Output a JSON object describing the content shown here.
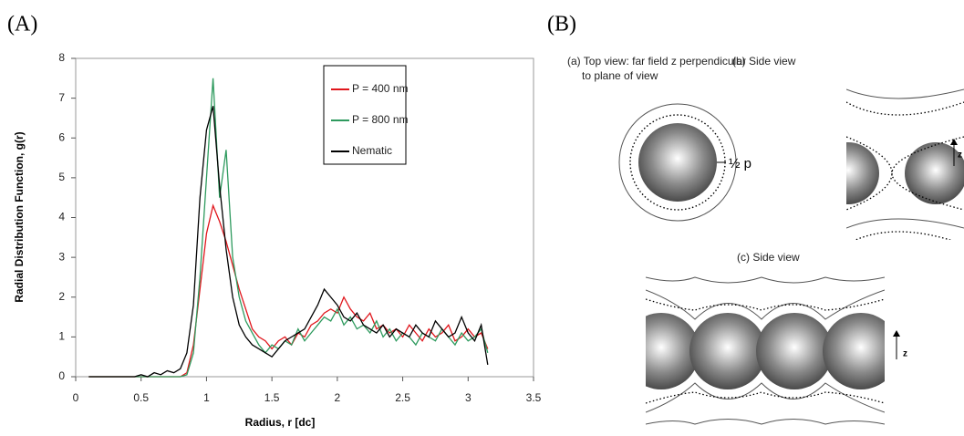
{
  "panel_labels": [
    "(A)",
    "(B)"
  ],
  "chart_data": {
    "type": "line",
    "y_label": "Radial Distribution Function, g(r)",
    "x_label": "Radius, r [dc]",
    "x": [
      0.1,
      0.15,
      0.2,
      0.25,
      0.3,
      0.35,
      0.4,
      0.45,
      0.5,
      0.55,
      0.6,
      0.65,
      0.7,
      0.75,
      0.8,
      0.85,
      0.9,
      0.95,
      1.0,
      1.05,
      1.1,
      1.15,
      1.2,
      1.25,
      1.3,
      1.35,
      1.4,
      1.45,
      1.5,
      1.55,
      1.6,
      1.65,
      1.7,
      1.75,
      1.8,
      1.85,
      1.9,
      1.95,
      2.0,
      2.05,
      2.1,
      2.15,
      2.2,
      2.25,
      2.3,
      2.35,
      2.4,
      2.45,
      2.5,
      2.55,
      2.6,
      2.65,
      2.7,
      2.75,
      2.8,
      2.85,
      2.9,
      2.95,
      3.0,
      3.05,
      3.1,
      3.15
    ],
    "series": [
      {
        "name": "P = 400 nm",
        "color": "#e0161c",
        "values": [
          0,
          0,
          0,
          0,
          0,
          0,
          0,
          0,
          0,
          0,
          0,
          0,
          0,
          0,
          0,
          0.1,
          0.8,
          2.2,
          3.6,
          4.3,
          3.9,
          3.4,
          2.8,
          2.2,
          1.7,
          1.2,
          1.0,
          0.9,
          0.7,
          0.9,
          1.0,
          0.8,
          1.1,
          1.0,
          1.3,
          1.4,
          1.6,
          1.7,
          1.6,
          2.0,
          1.7,
          1.5,
          1.4,
          1.6,
          1.2,
          1.3,
          1.1,
          1.2,
          1.0,
          1.3,
          1.1,
          0.9,
          1.2,
          1.0,
          1.1,
          1.3,
          0.9,
          1.0,
          1.2,
          1.0,
          1.1,
          0.7
        ]
      },
      {
        "name": "P = 800 nm",
        "color": "#2e9a5e",
        "values": [
          0,
          0,
          0,
          0,
          0,
          0,
          0,
          0,
          0,
          0,
          0,
          0,
          0,
          0,
          0,
          0.05,
          0.6,
          2.5,
          5.0,
          7.5,
          4.5,
          5.7,
          3.0,
          2.0,
          1.4,
          1.1,
          0.8,
          0.6,
          0.8,
          0.7,
          0.9,
          0.8,
          1.2,
          0.9,
          1.1,
          1.3,
          1.5,
          1.4,
          1.7,
          1.3,
          1.5,
          1.2,
          1.3,
          1.1,
          1.4,
          1.0,
          1.2,
          0.9,
          1.1,
          1.0,
          0.8,
          1.1,
          1.0,
          0.9,
          1.2,
          1.0,
          0.8,
          1.1,
          0.9,
          1.0,
          1.2,
          0.6
        ]
      },
      {
        "name": "Nematic",
        "color": "#000000",
        "values": [
          0,
          0,
          0,
          0,
          0,
          0,
          0,
          0,
          0.05,
          0,
          0.1,
          0.05,
          0.15,
          0.1,
          0.2,
          0.6,
          1.8,
          4.5,
          6.2,
          6.8,
          4.8,
          3.2,
          2.0,
          1.3,
          1.0,
          0.8,
          0.7,
          0.6,
          0.5,
          0.7,
          0.9,
          1.0,
          1.1,
          1.2,
          1.5,
          1.8,
          2.2,
          2.0,
          1.8,
          1.5,
          1.4,
          1.6,
          1.3,
          1.2,
          1.1,
          1.3,
          1.0,
          1.2,
          1.1,
          1.0,
          1.3,
          1.1,
          1.0,
          1.4,
          1.2,
          1.0,
          1.1,
          1.5,
          1.1,
          0.9,
          1.3,
          0.3
        ]
      }
    ],
    "xlim": [
      0,
      3.5
    ],
    "xticks": [
      0,
      0.5,
      1,
      1.5,
      2,
      2.5,
      3,
      3.5
    ],
    "ylim": [
      0,
      8
    ],
    "yticks": [
      0,
      1,
      2,
      3,
      4,
      5,
      6,
      7,
      8
    ],
    "legend": "upper right"
  },
  "diagram": {
    "a_label": [
      "(a) Top view: far field z perpendicular",
      "to plane of view"
    ],
    "half_pitch": "½ p",
    "b_label": "(b) Side view",
    "c_label": "(c) Side view",
    "axis_b": "z",
    "axis_c": "z"
  }
}
